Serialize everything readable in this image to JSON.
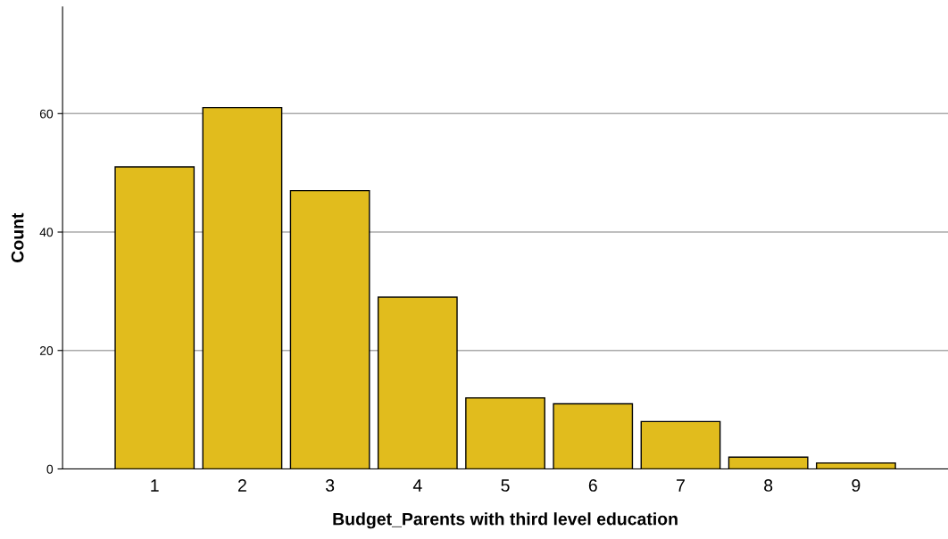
{
  "chart_data": {
    "type": "bar",
    "xlabel": "Budget_Parents with third level education",
    "ylabel": "Count",
    "categories": [
      "1",
      "2",
      "3",
      "4",
      "5",
      "6",
      "7",
      "8",
      "9"
    ],
    "values": [
      51,
      61,
      47,
      29,
      12,
      11,
      8,
      2,
      1
    ],
    "color": "#e1bc1d",
    "ylim": [
      0,
      78
    ],
    "yticks": [
      0,
      20,
      40,
      60
    ],
    "grid": "y",
    "legend": false
  }
}
